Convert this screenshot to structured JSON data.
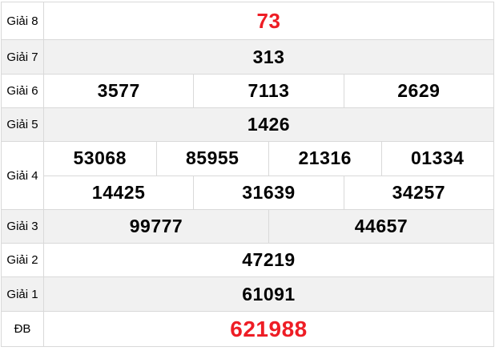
{
  "colors": {
    "highlight": "#ee1d25",
    "stripe": "#f1f1f1",
    "border": "#d9d9d9",
    "text": "#000000"
  },
  "rows": [
    {
      "label": "Giải 8",
      "values": [
        "73"
      ]
    },
    {
      "label": "Giải 7",
      "values": [
        "313"
      ]
    },
    {
      "label": "Giải 6",
      "values": [
        "3577",
        "7113",
        "2629"
      ]
    },
    {
      "label": "Giải 5",
      "values": [
        "1426"
      ]
    },
    {
      "label": "Giải 4",
      "values_line1": [
        "53068",
        "85955",
        "21316",
        "01334"
      ],
      "values_line2": [
        "14425",
        "31639",
        "34257"
      ]
    },
    {
      "label": "Giải 3",
      "values": [
        "99777",
        "44657"
      ]
    },
    {
      "label": "Giải 2",
      "values": [
        "47219"
      ]
    },
    {
      "label": "Giải 1",
      "values": [
        "61091"
      ]
    },
    {
      "label": "ĐB",
      "values": [
        "621988"
      ]
    }
  ]
}
